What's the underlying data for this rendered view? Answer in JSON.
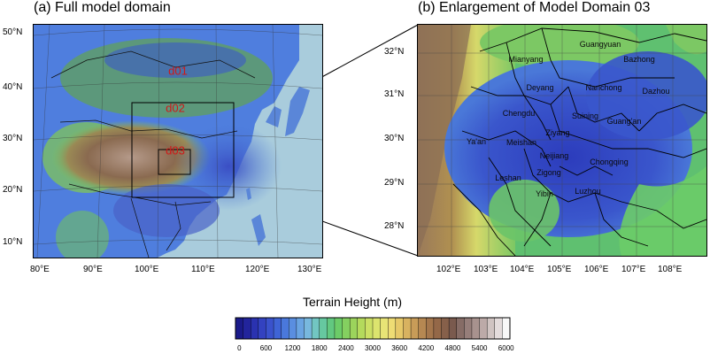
{
  "panel_a": {
    "title": "(a) Full model domain",
    "lat_labels": [
      "50°N",
      "40°N",
      "30°N",
      "20°N",
      "10°N"
    ],
    "lon_labels": [
      "80°E",
      "90°E",
      "100°E",
      "110°E",
      "120°E",
      "130°E"
    ],
    "domain_labels": [
      "d01",
      "d02",
      "d03"
    ]
  },
  "panel_b": {
    "title": "(b) Enlargement of Model Domain 03",
    "lat_labels": [
      "32°N",
      "31°N",
      "30°N",
      "29°N",
      "28°N"
    ],
    "lon_labels": [
      "102°E",
      "103°E",
      "104°E",
      "105°E",
      "106°E",
      "107°E",
      "108°E"
    ],
    "cities": [
      "Guangyuan",
      "Mianyang",
      "Bazhong",
      "Deyang",
      "Nanchong",
      "Dazhou",
      "Chengdu",
      "Suining",
      "Guang'an",
      "Ya'an",
      "Meishan",
      "Ziyang",
      "Neijiang",
      "Chongqing",
      "Leshan",
      "Zigong",
      "Yibin",
      "Luzhou"
    ]
  },
  "colorbar": {
    "title": "Terrain Height (m)",
    "tick_labels": [
      "0",
      "600",
      "1200",
      "1800",
      "2400",
      "3000",
      "3600",
      "4200",
      "4800",
      "5400",
      "6000"
    ],
    "colors": [
      "#1a1a8a",
      "#22249c",
      "#2a32b0",
      "#3342c0",
      "#3a52cc",
      "#3f64d6",
      "#4a78dc",
      "#5a8ee0",
      "#6aa4e2",
      "#78b8de",
      "#72c6c2",
      "#66c8a0",
      "#62c880",
      "#6ccc68",
      "#84d060",
      "#9cd45c",
      "#b4da5c",
      "#cce064",
      "#dce46e",
      "#e8e476",
      "#eedc74",
      "#e6c868",
      "#d8b260",
      "#c89c58",
      "#b68852",
      "#a4764c",
      "#946848",
      "#86604a",
      "#7a5a4e",
      "#866c66",
      "#967e7a",
      "#a8928e",
      "#bcaaa8",
      "#d0c4c2",
      "#e4dcdc",
      "#f8f8f8"
    ]
  },
  "colors": {
    "ocean": "#a9ccdc",
    "domain_label": "#d01818"
  }
}
